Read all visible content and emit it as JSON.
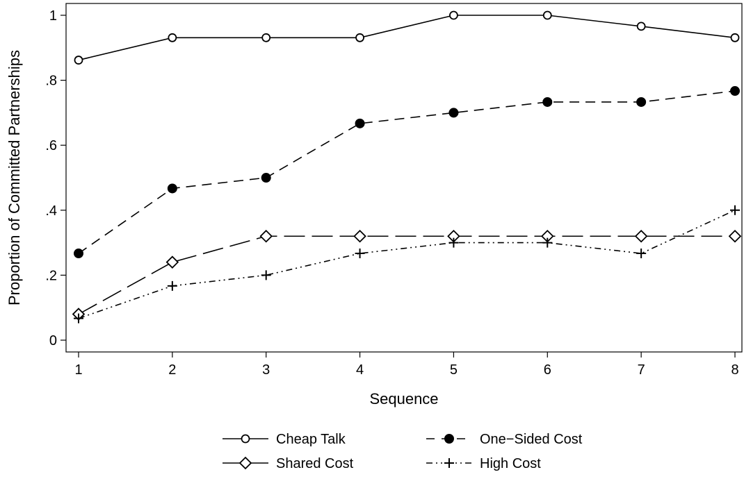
{
  "chart_data": {
    "type": "line",
    "xlabel": "Sequence",
    "ylabel": "Proportion of Committed Partnerships",
    "x": [
      1,
      2,
      3,
      4,
      5,
      6,
      7,
      8
    ],
    "xlim": [
      1,
      8
    ],
    "ylim": [
      0,
      1
    ],
    "x_ticks": [
      1,
      2,
      3,
      4,
      5,
      6,
      7,
      8
    ],
    "y_ticks": [
      {
        "value": 0,
        "label": "0"
      },
      {
        "value": 0.2,
        "label": ".2"
      },
      {
        "value": 0.4,
        "label": ".4"
      },
      {
        "value": 0.6,
        "label": ".6"
      },
      {
        "value": 0.8,
        "label": ".8"
      },
      {
        "value": 1,
        "label": "1"
      }
    ],
    "grid": false,
    "legend_position": "bottom",
    "series": [
      {
        "name": "Cheap Talk",
        "marker": "hollow-circle",
        "line_style": "solid",
        "values": [
          0.862,
          0.931,
          0.931,
          0.931,
          1.0,
          1.0,
          0.966,
          0.931
        ]
      },
      {
        "name": "One−Sided Cost",
        "marker": "filled-circle",
        "line_style": "dashed",
        "values": [
          0.267,
          0.467,
          0.5,
          0.667,
          0.7,
          0.733,
          0.733,
          0.767
        ]
      },
      {
        "name": "Shared Cost",
        "marker": "hollow-diamond",
        "line_style": "long-dash",
        "values": [
          0.08,
          0.24,
          0.32,
          0.32,
          0.32,
          0.32,
          0.32,
          0.32
        ]
      },
      {
        "name": "High Cost",
        "marker": "plus",
        "line_style": "dash-dot-dot",
        "values": [
          0.067,
          0.167,
          0.2,
          0.267,
          0.3,
          0.3,
          0.267,
          0.4
        ]
      }
    ]
  }
}
